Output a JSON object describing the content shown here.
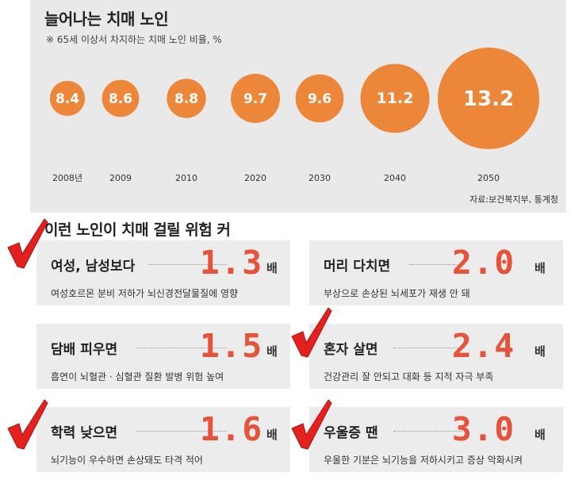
{
  "header": {
    "title": "늘어나는 치매 노인",
    "subtitle": "※ 65세 이상서 차지하는 치매 노인 비율, %"
  },
  "chart_data": {
    "type": "bubble",
    "title": "늘어나는 치매 노인",
    "subtitle": "※ 65세 이상서 차지하는 치매 노인 비율, %",
    "categories": [
      "2008년",
      "2009",
      "2010",
      "2020",
      "2030",
      "2040",
      "2050"
    ],
    "values": [
      8.4,
      8.6,
      8.8,
      9.7,
      9.6,
      11.2,
      13.2
    ],
    "value_labels": [
      "8.4",
      "8.6",
      "8.8",
      "9.7",
      "9.6",
      "11.2",
      "13.2"
    ],
    "source": "자료:보건복지부, 통계청",
    "color": "#ec8639"
  },
  "risk": {
    "title": "이런 노인이 치매 걸릴 위험 커",
    "unit": "배",
    "accent": "#e5533a",
    "items": [
      {
        "head": "여성, 남성보다",
        "value": "1.3",
        "desc": "여성호르몬 분비 저하가 뇌신경전달물질에 영향"
      },
      {
        "head": "머리 다치면",
        "value": "2.0",
        "desc": "부상으로 손상된 뇌세포가 재생 안 돼"
      },
      {
        "head": "담배 피우면",
        "value": "1.5",
        "desc": "흡연이 뇌혈관 · 심혈관 질환 발병 위험 높여"
      },
      {
        "head": "혼자 살면",
        "value": "2.4",
        "desc": "건강관리 잘 안되고 대화 등 지적 자극 부족"
      },
      {
        "head": "학력 낮으면",
        "value": "1.6",
        "desc": "뇌기능이 우수하면 손상돼도 타격 적어"
      },
      {
        "head": "우울증 땐",
        "value": "3.0",
        "desc": "우울한 기분은 뇌기능을 저하시키고 증상 악화시켜"
      }
    ]
  },
  "checkmark": {
    "icon": "check-icon",
    "color": "#e3221f"
  }
}
